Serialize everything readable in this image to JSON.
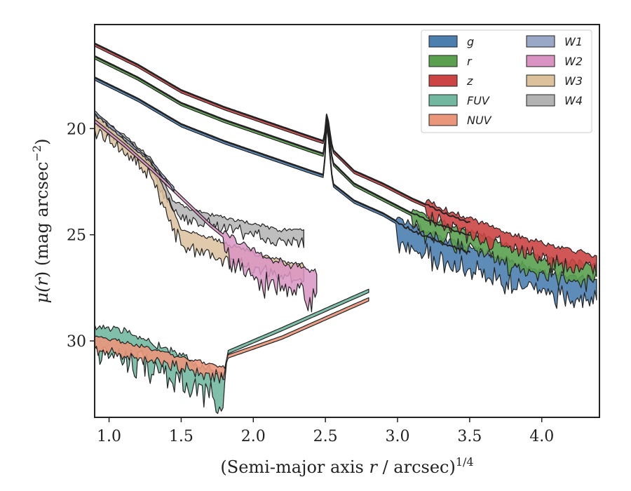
{
  "chart_data": {
    "type": "area",
    "title": "",
    "xlabel_parts": {
      "main": "(Semi-major axis ",
      "var": "r",
      "rest": " / arcsec)",
      "sup": "1/4"
    },
    "ylabel_parts": {
      "mu": "μ(",
      "var": "r",
      "rest": ") (mag arcsec",
      "sup": "−2",
      "close": ")"
    },
    "xlim": [
      0.9,
      4.4
    ],
    "ylim": [
      33.6,
      15.1
    ],
    "y_inverted": true,
    "grid": false,
    "xticks": [
      1.0,
      1.5,
      2.0,
      2.5,
      3.0,
      3.5,
      4.0
    ],
    "xtick_labels": [
      "1.0",
      "1.5",
      "2.0",
      "2.5",
      "3.0",
      "3.5",
      "4.0"
    ],
    "yticks": [
      20,
      25,
      30
    ],
    "ytick_labels": [
      "20",
      "25",
      "30"
    ],
    "legend": {
      "position": "top-right",
      "columns": 2
    },
    "series": [
      {
        "name": "g",
        "color": "#4c7fb0",
        "x_range": [
          0.9,
          4.38
        ],
        "x": [
          0.9,
          1.2,
          1.5,
          1.8,
          2.1,
          2.4,
          2.49,
          2.51,
          2.55,
          2.7,
          2.9,
          3.1,
          3.4,
          3.7,
          4.0,
          4.2,
          4.38
        ],
        "y": [
          17.6,
          18.6,
          19.8,
          20.6,
          21.3,
          22.0,
          22.2,
          19.6,
          22.6,
          23.4,
          24.0,
          24.8,
          25.6,
          26.3,
          27.0,
          27.2,
          27.3
        ],
        "noise_from": 3.0,
        "noise_amp": 1.2
      },
      {
        "name": "r",
        "color": "#5aa04f",
        "x_range": [
          0.9,
          4.38
        ],
        "x": [
          0.9,
          1.2,
          1.5,
          1.8,
          2.1,
          2.4,
          2.49,
          2.51,
          2.55,
          2.7,
          2.9,
          3.1,
          3.4,
          3.7,
          4.0,
          4.2,
          4.38
        ],
        "y": [
          16.6,
          17.6,
          18.8,
          19.6,
          20.3,
          21.0,
          21.2,
          19.4,
          21.6,
          22.6,
          23.3,
          24.0,
          24.8,
          25.5,
          26.3,
          26.5,
          26.6
        ],
        "noise_from": 3.1,
        "noise_amp": 1.0
      },
      {
        "name": "z",
        "color": "#cc4444",
        "x_range": [
          0.9,
          4.38
        ],
        "x": [
          0.9,
          1.2,
          1.5,
          1.8,
          2.1,
          2.4,
          2.49,
          2.51,
          2.55,
          2.7,
          2.9,
          3.1,
          3.4,
          3.7,
          4.0,
          4.2,
          4.38
        ],
        "y": [
          16.0,
          17.0,
          18.2,
          19.0,
          19.7,
          20.4,
          20.6,
          19.2,
          21.0,
          22.0,
          22.6,
          23.3,
          24.2,
          24.9,
          25.6,
          25.9,
          26.2
        ],
        "noise_from": 3.2,
        "noise_amp": 0.9
      },
      {
        "name": "FUV",
        "color": "#72b8a1",
        "x_range": [
          0.9,
          2.8
        ],
        "x": [
          0.9,
          1.1,
          1.3,
          1.5,
          1.65,
          1.8,
          1.82,
          2.2,
          2.6,
          2.8
        ],
        "y": [
          29.6,
          29.8,
          30.4,
          30.9,
          31.5,
          32.0,
          30.5,
          29.4,
          28.2,
          27.6
        ],
        "noise_to": 1.8,
        "noise_amp": 1.4
      },
      {
        "name": "NUV",
        "color": "#e9967a",
        "x_range": [
          0.9,
          2.8
        ],
        "x": [
          0.9,
          1.1,
          1.3,
          1.5,
          1.65,
          1.8,
          1.82,
          2.2,
          2.6,
          2.8
        ],
        "y": [
          29.9,
          30.2,
          30.5,
          30.9,
          31.1,
          31.4,
          30.7,
          29.8,
          28.6,
          28.0
        ],
        "noise_to": 1.8,
        "noise_amp": 0.6
      },
      {
        "name": "W1",
        "color": "#9aa8c8",
        "x_range": [
          0.9,
          1.45
        ],
        "x": [
          0.9,
          1.1,
          1.3,
          1.45
        ],
        "y": [
          19.2,
          20.4,
          21.6,
          22.8
        ],
        "noise_amp": 0.15
      },
      {
        "name": "W2",
        "color": "#d994c3",
        "x_range": [
          0.9,
          2.44
        ],
        "x": [
          0.9,
          1.1,
          1.3,
          1.5,
          1.7,
          1.9,
          2.1,
          2.3,
          2.44
        ],
        "y": [
          19.6,
          20.7,
          21.9,
          23.2,
          24.5,
          25.6,
          26.4,
          26.8,
          27.0
        ],
        "noise_from": 1.8,
        "noise_amp": 1.4
      },
      {
        "name": "W3",
        "color": "#dcc19c",
        "x_range": [
          0.9,
          2.35
        ],
        "x": [
          0.9,
          1.1,
          1.3,
          1.5,
          1.7,
          1.9,
          2.1,
          2.35
        ],
        "y": [
          19.5,
          20.6,
          21.8,
          24.9,
          25.3,
          25.8,
          26.2,
          26.6
        ],
        "noise_amp": 0.8
      },
      {
        "name": "W4",
        "color": "#b3b3b3",
        "x_range": [
          0.9,
          2.35
        ],
        "x": [
          0.9,
          1.1,
          1.3,
          1.45,
          1.6,
          1.8,
          2.0,
          2.2,
          2.35
        ],
        "y": [
          19.4,
          20.4,
          21.6,
          23.6,
          24.0,
          24.3,
          24.6,
          24.9,
          24.9
        ],
        "noise_amp": 0.6
      }
    ]
  }
}
